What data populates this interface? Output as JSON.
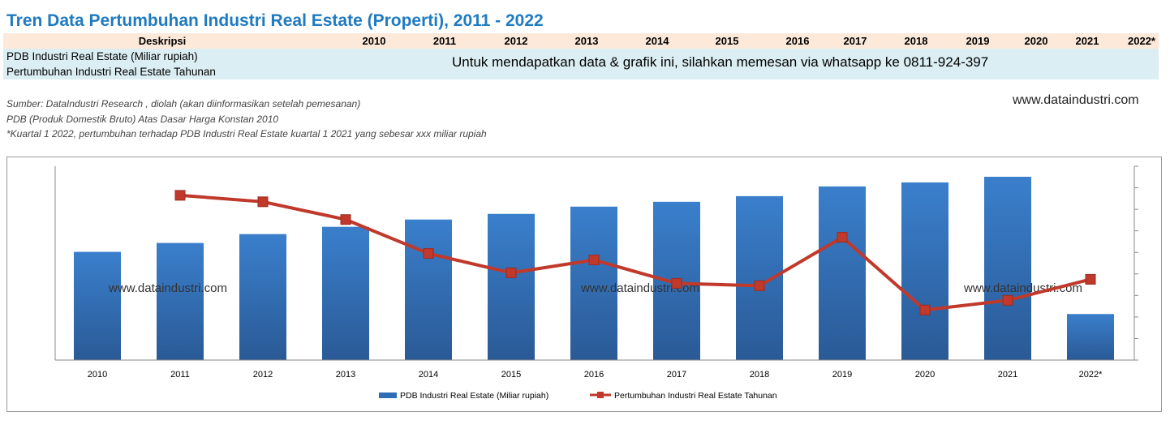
{
  "title": "Tren Data Pertumbuhan Industri Real Estate (Properti), 2011 - 2022",
  "table": {
    "header": "Deskripsi",
    "years": [
      "2010",
      "2011",
      "2012",
      "2013",
      "2014",
      "2015",
      "2016",
      "2017",
      "2018",
      "2019",
      "2020",
      "2021",
      "2022*"
    ],
    "rows": [
      "PDB Industri Real Estate (Miliar rupiah)",
      "Pertumbuhan Industri Real Estate Tahunan"
    ],
    "notice": "Untuk mendapatkan data & grafik ini, silahkan memesan  via whatsapp ke 0811-924-397"
  },
  "notes": [
    "Sumber: DataIndustri Research , diolah (akan diinformasikan setelah pemesanan)",
    "PDB (Produk Domestik Bruto) Atas Dasar Harga Konstan 2010",
    "*Kuartal 1 2022, pertumbuhan terhadap PDB Industri Real Estate kuartal 1 2021 yang sebesar xxx miliar rupiah"
  ],
  "website": "www.dataindustri.com",
  "chart_data": {
    "type": "bar",
    "categories": [
      "2010",
      "2011",
      "2012",
      "2013",
      "2014",
      "2015",
      "2016",
      "2017",
      "2018",
      "2019",
      "2020",
      "2021",
      "2022*"
    ],
    "series": [
      {
        "name": "PDB Industri Real Estate (Miliar rupiah)",
        "type": "bar",
        "color": "#2e6db4",
        "values": [
          134,
          145,
          156,
          165,
          174,
          181,
          190,
          196,
          203,
          215,
          220,
          227,
          57
        ]
      },
      {
        "name": "Pertumbuhan Industri Real Estate Tahunan",
        "type": "line",
        "color": "#c0392b",
        "values": [
          null,
          204,
          196,
          174,
          132,
          108,
          124,
          95,
          92,
          152,
          62,
          74,
          100
        ]
      }
    ],
    "ylim": [
      0,
      240
    ],
    "y2lim": [
      0,
      240
    ],
    "note": "axis values not shown; relative scale",
    "watermark": "www.dataindustri.com",
    "legend": "bottom"
  }
}
